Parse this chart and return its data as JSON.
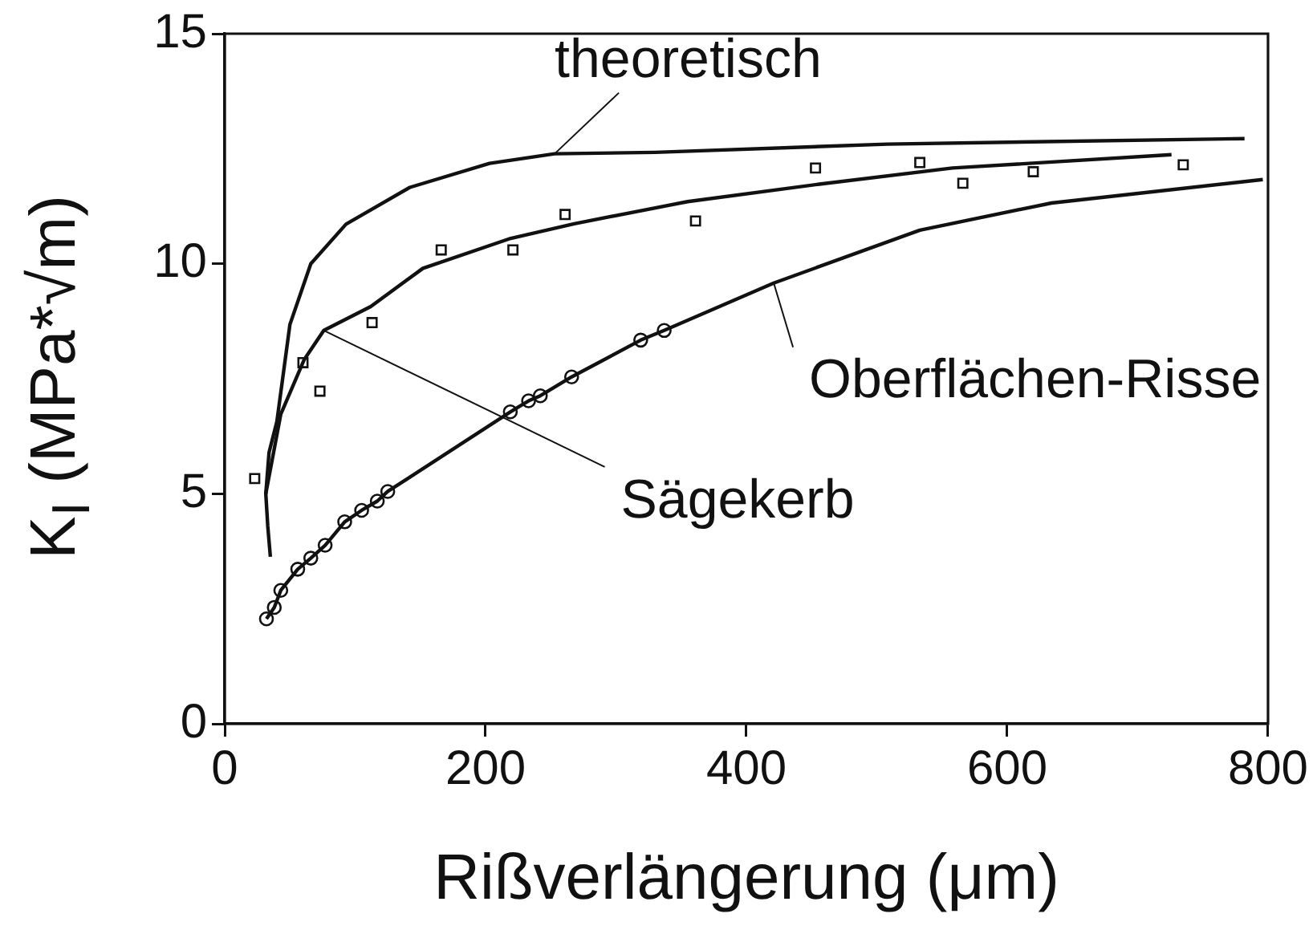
{
  "chart_data": {
    "type": "line",
    "xlabel": "Rißverlängerung (μm)",
    "ylabel": "K$_{I}$ (MPa*√m)",
    "xlim": [
      0,
      800
    ],
    "xticks": [
      0,
      200,
      400,
      600,
      800
    ],
    "ylim": [
      0,
      15
    ],
    "yticks": [
      0,
      5,
      10,
      15
    ],
    "grid": false,
    "legend": false,
    "series": [
      {
        "type": "line",
        "marker": "none",
        "color": "#111111",
        "x": [
          35,
          33,
          31.5,
          34,
          40,
          50,
          66,
          93,
          142,
          203,
          253,
          330,
          508,
          782
        ],
        "values": [
          3.63,
          4.3,
          5.0,
          5.9,
          6.57,
          8.68,
          10.0,
          10.86,
          11.66,
          12.18,
          12.39,
          12.42,
          12.6,
          12.72
        ]
      },
      {
        "type": "line",
        "marker": "none",
        "color": "#111111",
        "x": [
          31.5,
          43,
          61,
          76,
          112,
          152,
          218,
          268,
          355,
          456,
          558,
          726
        ],
        "values": [
          5.0,
          6.73,
          7.92,
          8.55,
          9.07,
          9.9,
          10.54,
          10.87,
          11.35,
          11.73,
          12.08,
          12.37
        ]
      },
      {
        "type": "scatter",
        "marker": "square",
        "color": "#111111",
        "x": [
          23,
          60,
          73,
          113,
          166,
          221,
          261,
          361,
          453,
          533,
          566,
          620,
          735
        ],
        "values": [
          5.33,
          7.85,
          7.23,
          8.72,
          10.3,
          10.3,
          11.07,
          10.93,
          12.08,
          12.2,
          11.75,
          12.0,
          12.15
        ]
      },
      {
        "type": "line",
        "marker": "none",
        "color": "#111111",
        "x": [
          32,
          38,
          43,
          56,
          66,
          77,
          92,
          105,
          117,
          125,
          219,
          233,
          242,
          266,
          319,
          337,
          421,
          533,
          634,
          796
        ],
        "values": [
          2.28,
          2.53,
          2.9,
          3.36,
          3.6,
          3.88,
          4.39,
          4.64,
          4.84,
          5.05,
          6.78,
          7.02,
          7.13,
          7.54,
          8.34,
          8.55,
          9.58,
          10.73,
          11.32,
          11.83
        ]
      },
      {
        "type": "scatter",
        "marker": "circle",
        "color": "#111111",
        "x": [
          32,
          38,
          43,
          56,
          66,
          77,
          92,
          105,
          117,
          125,
          219,
          233,
          242,
          266,
          319,
          337
        ],
        "values": [
          2.28,
          2.53,
          2.9,
          3.36,
          3.6,
          3.88,
          4.39,
          4.64,
          4.84,
          5.05,
          6.78,
          7.02,
          7.13,
          7.54,
          8.34,
          8.55
        ]
      }
    ],
    "annotations": [
      {
        "text": "theoretisch",
        "x": 253,
        "y": 12.39
      },
      {
        "text": "Sägekerb",
        "x": 76,
        "y": 8.55
      },
      {
        "text": "Oberflächen-Risse",
        "x": 421,
        "y": 9.58
      }
    ]
  }
}
